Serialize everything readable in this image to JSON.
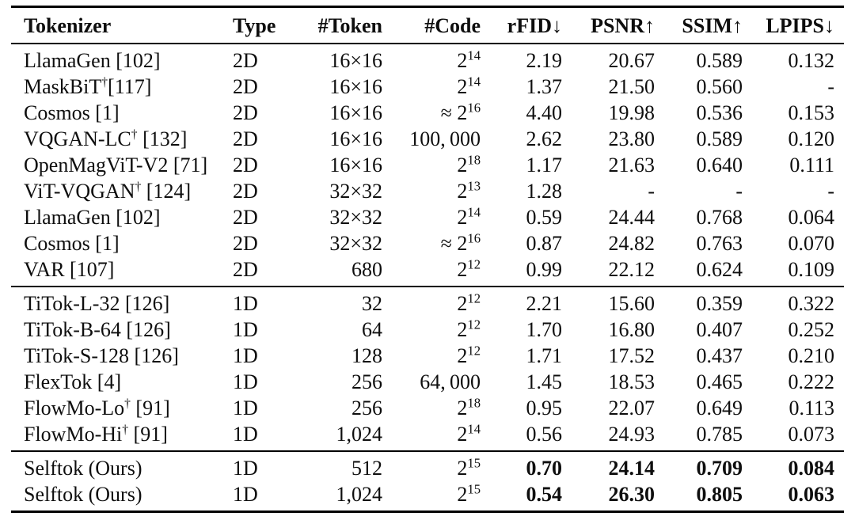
{
  "page": {
    "background_color": "#ffffff",
    "text_color": "#0e0e0e",
    "rule_color": "#000000"
  },
  "table": {
    "columns": [
      {
        "key": "tokenizer",
        "label": "Tokenizer",
        "align": "left"
      },
      {
        "key": "type",
        "label": "Type",
        "align": "left"
      },
      {
        "key": "token",
        "label": "#Token",
        "align": "right"
      },
      {
        "key": "code",
        "label": "#Code",
        "align": "right"
      },
      {
        "key": "rfid",
        "label": "rFID↓",
        "align": "right"
      },
      {
        "key": "psnr",
        "label": "PSNR↑",
        "align": "right"
      },
      {
        "key": "ssim",
        "label": "SSIM↑",
        "align": "right"
      },
      {
        "key": "lpips",
        "label": "LPIPS↓",
        "align": "right"
      }
    ],
    "sections": [
      {
        "name": "2d-tokenizers",
        "bold_metrics": false,
        "rows": [
          [
            "LlamaGen [102]",
            "2D",
            "16×16",
            "2^14",
            "2.19",
            "20.67",
            "0.589",
            "0.132"
          ],
          [
            "MaskBiT†[117]",
            "2D",
            "16×16",
            "2^14",
            "1.37",
            "21.50",
            "0.560",
            "-"
          ],
          [
            "Cosmos [1]",
            "2D",
            "16×16",
            "≈ 2^16",
            "4.40",
            "19.98",
            "0.536",
            "0.153"
          ],
          [
            "VQGAN-LC† [132]",
            "2D",
            "16×16",
            "100, 000",
            "2.62",
            "23.80",
            "0.589",
            "0.120"
          ],
          [
            "OpenMagViT-V2 [71]",
            "2D",
            "16×16",
            "2^18",
            "1.17",
            "21.63",
            "0.640",
            "0.111"
          ],
          [
            "ViT-VQGAN† [124]",
            "2D",
            "32×32",
            "2^13",
            "1.28",
            "-",
            "-",
            "-"
          ],
          [
            "LlamaGen [102]",
            "2D",
            "32×32",
            "2^14",
            "0.59",
            "24.44",
            "0.768",
            "0.064"
          ],
          [
            "Cosmos [1]",
            "2D",
            "32×32",
            "≈ 2^16",
            "0.87",
            "24.82",
            "0.763",
            "0.070"
          ],
          [
            "VAR [107]",
            "2D",
            "680",
            "2^12",
            "0.99",
            "22.12",
            "0.624",
            "0.109"
          ]
        ]
      },
      {
        "name": "1d-tokenizers",
        "bold_metrics": false,
        "rows": [
          [
            "TiTok-L-32 [126]",
            "1D",
            "32",
            "2^12",
            "2.21",
            "15.60",
            "0.359",
            "0.322"
          ],
          [
            "TiTok-B-64 [126]",
            "1D",
            "64",
            "2^12",
            "1.70",
            "16.80",
            "0.407",
            "0.252"
          ],
          [
            "TiTok-S-128 [126]",
            "1D",
            "128",
            "2^12",
            "1.71",
            "17.52",
            "0.437",
            "0.210"
          ],
          [
            "FlexTok [4]",
            "1D",
            "256",
            "64, 000",
            "1.45",
            "18.53",
            "0.465",
            "0.222"
          ],
          [
            "FlowMo-Lo† [91]",
            "1D",
            "256",
            "2^18",
            "0.95",
            "22.07",
            "0.649",
            "0.113"
          ],
          [
            "FlowMo-Hi† [91]",
            "1D",
            "1,024",
            "2^14",
            "0.56",
            "24.93",
            "0.785",
            "0.073"
          ]
        ]
      },
      {
        "name": "selftok-ours",
        "bold_metrics": true,
        "rows": [
          [
            "Selftok (Ours)",
            "1D",
            "512",
            "2^15",
            "0.70",
            "24.14",
            "0.709",
            "0.084"
          ],
          [
            "Selftok (Ours)",
            "1D",
            "1,024",
            "2^15",
            "0.54",
            "26.30",
            "0.805",
            "0.063"
          ]
        ]
      }
    ]
  }
}
